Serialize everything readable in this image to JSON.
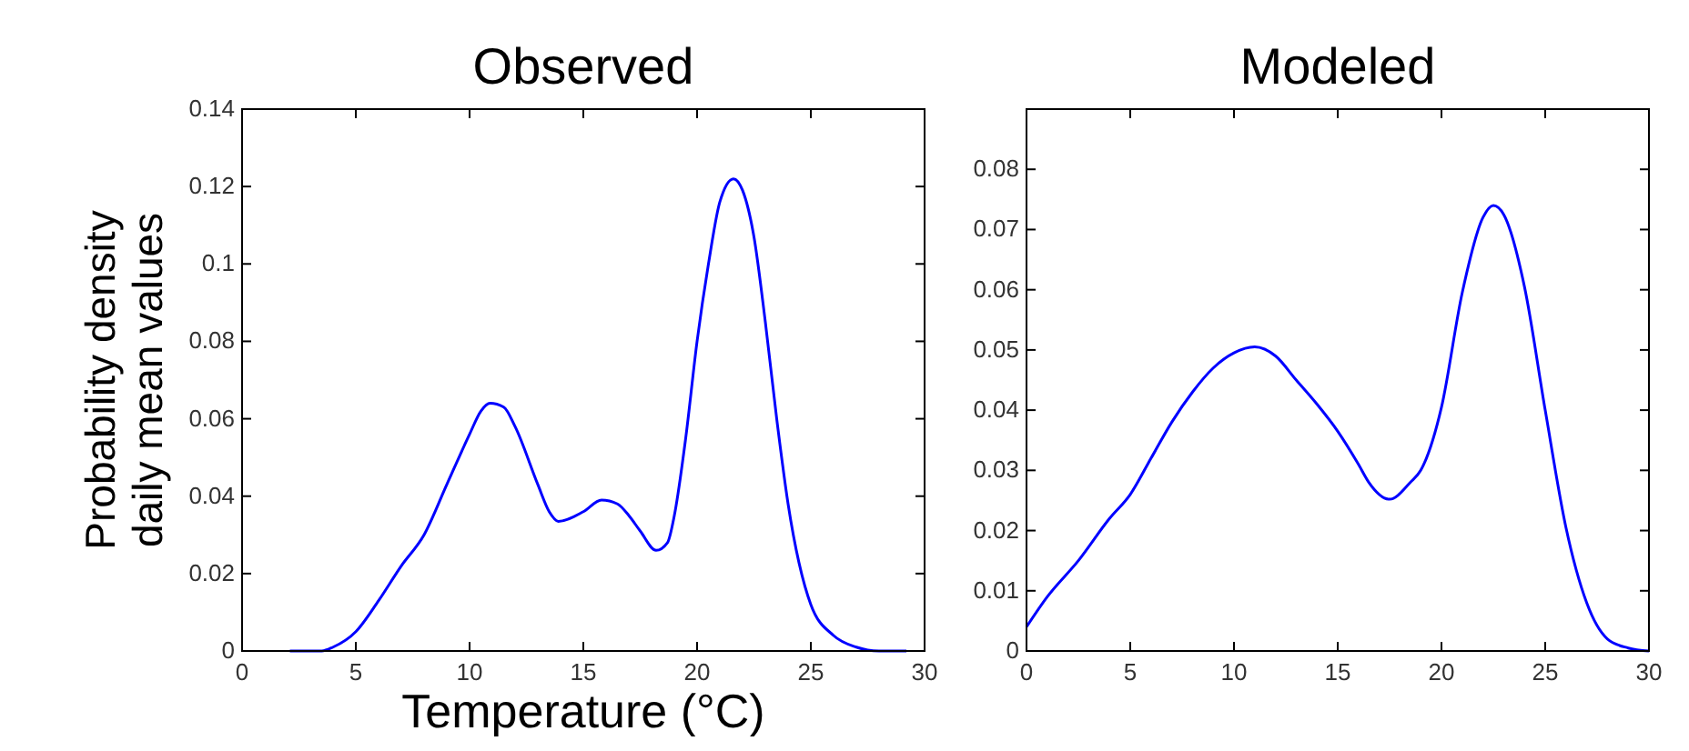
{
  "chart_data": [
    {
      "type": "line",
      "title": "Observed",
      "xlabel": "Temperature (°C)",
      "ylabel": "Probability density daily mean values",
      "xlim": [
        0,
        30
      ],
      "xticks": [
        0,
        5,
        10,
        15,
        20,
        25,
        30
      ],
      "ylim": [
        0,
        0.14
      ],
      "yticks": [
        0,
        0.02,
        0.04,
        {
          "value": 0.06,
          "label": "0.06"
        },
        0.08,
        0.1,
        0.12,
        0.14
      ],
      "grid": false,
      "series": [
        {
          "color": "#0000ff",
          "x": [
            2.1,
            3.5,
            4,
            5,
            6,
            7,
            8,
            9,
            10,
            10.5,
            10.9,
            11.5,
            12,
            13,
            13.5,
            13.9,
            15,
            15.8,
            16.5,
            17,
            17.5,
            18.2,
            18.7,
            19,
            19.5,
            20,
            20.5,
            21,
            21.6,
            22,
            22.5,
            23,
            23.5,
            24,
            25,
            26,
            27,
            28,
            29.2
          ],
          "values": [
            0,
            0,
            0.001,
            0.005,
            0.013,
            0.022,
            0.03,
            0.043,
            0.056,
            0.062,
            0.064,
            0.063,
            0.058,
            0.043,
            0.036,
            0.0335,
            0.036,
            0.039,
            0.038,
            0.035,
            0.031,
            0.026,
            0.028,
            0.035,
            0.055,
            0.08,
            0.1,
            0.116,
            0.122,
            0.119,
            0.107,
            0.085,
            0.06,
            0.038,
            0.012,
            0.004,
            0.001,
            0,
            0
          ]
        }
      ]
    },
    {
      "type": "line",
      "title": "Modeled",
      "xlim": [
        0,
        30
      ],
      "xticks": [
        0,
        5,
        10,
        15,
        20,
        25,
        30
      ],
      "ylim": [
        0,
        0.09
      ],
      "yticks": [
        0,
        0.01,
        0.02,
        0.03,
        0.04,
        0.05,
        0.06,
        0.07,
        0.08
      ],
      "grid": false,
      "series": [
        {
          "color": "#0000ff",
          "x": [
            0,
            1,
            2.5,
            4,
            5,
            6,
            7,
            8,
            9,
            10,
            11,
            12,
            13,
            14,
            15,
            16,
            16.5,
            17.5,
            18.5,
            19,
            20,
            21,
            22,
            22.5,
            23,
            24,
            25,
            26,
            27,
            28,
            29,
            30
          ],
          "values": [
            0.004,
            0.009,
            0.015,
            0.022,
            0.026,
            0.032,
            0.038,
            0.043,
            0.047,
            0.0495,
            0.0505,
            0.049,
            0.045,
            0.041,
            0.0365,
            0.031,
            0.028,
            0.0252,
            0.028,
            0.03,
            0.0405,
            0.0595,
            0.072,
            0.074,
            0.0725,
            0.0605,
            0.04,
            0.0205,
            0.008,
            0.002,
            0.0005,
            0
          ]
        }
      ]
    }
  ]
}
